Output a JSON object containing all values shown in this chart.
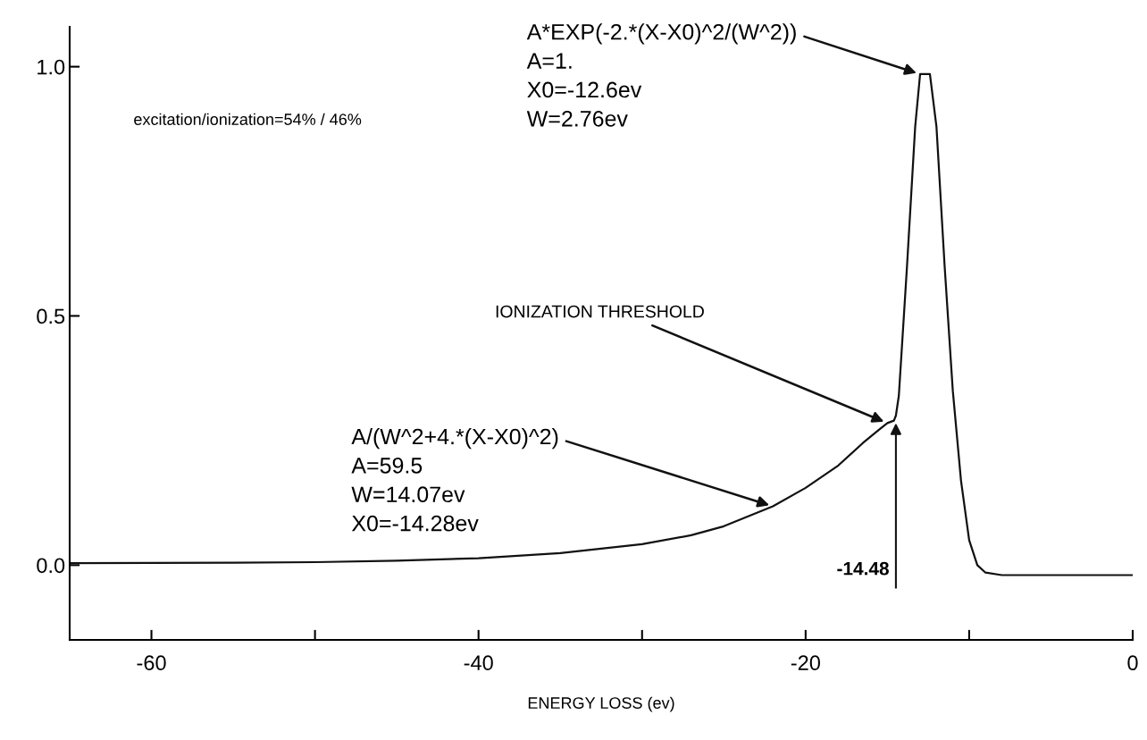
{
  "chart_data": {
    "type": "line",
    "xlabel": "ENERGY LOSS (ev)",
    "x": [
      -65,
      -55,
      -50,
      -45,
      -40,
      -35,
      -30,
      -27,
      -25,
      -22,
      -20,
      -18,
      -16.5,
      -15.5,
      -15,
      -14.6,
      -14.48,
      -14.3,
      -13.8,
      -13.3,
      -13,
      -12.4,
      -12,
      -11.5,
      -11,
      -10.5,
      -10,
      -9.5,
      -9,
      -8,
      -5,
      0
    ],
    "series": [
      {
        "color": "#111111",
        "values": [
          0.004,
          0.005,
          0.006,
          0.009,
          0.014,
          0.024,
          0.042,
          0.06,
          0.078,
          0.118,
          0.155,
          0.2,
          0.245,
          0.272,
          0.285,
          0.29,
          0.3,
          0.34,
          0.6,
          0.88,
          0.985,
          0.985,
          0.88,
          0.6,
          0.35,
          0.17,
          0.05,
          0.0,
          -0.015,
          -0.02,
          -0.02,
          -0.02
        ]
      }
    ],
    "xlim": [
      -65,
      0
    ],
    "ylim": [
      -0.15,
      1.08
    ],
    "xticks": [
      -60,
      {
        "value": -50,
        "label": null
      },
      -40,
      {
        "value": -30,
        "label": null
      },
      -20,
      {
        "value": -10,
        "label": null
      },
      0
    ],
    "yticks": [
      {
        "value": 0,
        "label": "0.0"
      },
      {
        "value": 0.5,
        "label": "0.5"
      },
      {
        "value": 1,
        "label": "1.0"
      }
    ],
    "grid": false,
    "legend": false,
    "marker": "none",
    "line_style": "solid",
    "annotations": [
      "excitation/ionization=54% / 46%",
      {
        "text": "A*EXP(-2.*(X-X0)^2/(W^2))\nA=1.\nX0=-12.6ev\nW=2.76ev",
        "x": -13,
        "y": 0.985
      },
      {
        "text": "IONIZATION THRESHOLD",
        "x": -15,
        "y": 0.285
      },
      {
        "text": "A/(W^2+4.*(X-X0)^2)\nA=59.5\nW=14.07ev\nX0=-14.28ev",
        "x": -22,
        "y": 0.118
      }
    ],
    "ref_lines": [
      {
        "axis": "x",
        "value": -14.48,
        "label": "-14.48",
        "color": "#111111"
      }
    ]
  }
}
